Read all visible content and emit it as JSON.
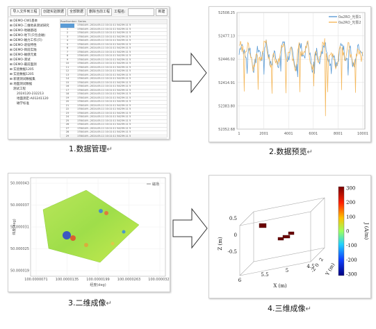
{
  "captions": {
    "p1": "1.数据管理",
    "p2": "2.数据预览",
    "p3": "3.二维成像",
    "p4": "4.三维成像",
    "mark": "↵"
  },
  "panel1": {
    "toolbar": [
      "导入文件到工程",
      "创建实验数据",
      "全部数据",
      "删除当前工程"
    ],
    "project_label": "工程名:",
    "new_button": "新建",
    "tree": [
      "DEMO-CW1基本",
      "DEMO-二维地表测试研究",
      "DEMO-地磁基础",
      "DEMO-地下(只包含磁)",
      "DEMO-磁力工作(只)",
      "DEMO-退役特性",
      "DEMO-目前实践",
      "DEMO-磁感元素",
      "DEMO-测试",
      "DEMO-最前面测",
      "实验数据1205",
      "实验数据1205",
      "新建测试数据集",
      "地面测试数据",
      "测试工程",
      "2024120-232213",
      "地面测定-A01241120",
      "磁学标准"
    ],
    "grid_headers": [
      "RowNumber",
      "Series"
    ],
    "grid_rows": [
      "1784149...2024-05-11 10:11:11 54239.11 5",
      "1784149...2024-05-11 10:11:11 54239.11 5",
      "1784149...2024-05-11 10:11:11 54239.11 5",
      "1784149...2024-05-11 10:11:11 54239.11 5",
      "1784149...2024-05-11 10:11:11 54239.11 5",
      "1784149...2024-05-11 10:11:11 54239.11 5",
      "1784149...2024-05-11 10:11:11 54239.11 5",
      "1784149...2024-05-11 10:11:11 54239.11 5",
      "1784149...2024-05-11 10:11:11 54239.11 5",
      "1784149...2024-05-11 10:11:11 54239.11 5",
      "1784149...2024-05-11 10:11:11 54239.11 5",
      "1784149...2024-05-11 10:11:11 54239.11 5",
      "1784149...2024-05-11 10:11:11 54239.11 5",
      "1784149...2024-05-11 10:11:11 54239.11 5",
      "1784149...2024-05-11 10:11:11 54239.11 5",
      "1784149...2024-05-11 10:11:11 54239.11 5",
      "1784149...2024-05-11 10:11:11 54239.11 5",
      "1784149...2024-05-11 10:11:11 54239.11 5",
      "1784149...2024-05-11 10:11:11 54239.11 5",
      "1784149...2024-05-11 10:11:11 54239.11 5",
      "1784149...2024-05-11 10:11:11 54239.11 5",
      "1784149...2024-05-11 10:11:11 54239.11 5",
      "1784149...2024-05-11 10:11:11 54239.11 5",
      "1784149...2024-05-11 10:11:11 54239.11 5",
      "1784149...2024-05-11 10:11:11 54239.11 5",
      "1784149...2024-05-11 10:11:11 54239.11 5",
      "1784149...2024-05-11 10:11:11 54239.11 5",
      "1784149...2024-05-11 10:11:11 54239.11 5",
      "1784149...2024-05-11 10:11:11 54239.11 5",
      "1784149...2024-05-11 10:11:11 54239.11 5"
    ]
  },
  "chart_data": [
    {
      "type": "line",
      "title": "",
      "series": [
        {
          "name": "0a2RO_光泵1",
          "color": "#5b9bd5"
        },
        {
          "name": "0a2RO_光泵2",
          "color": "#f4b75a"
        }
      ],
      "y_ticks": [
        "52508.25",
        "52477.13",
        "52446.02",
        "52414.91",
        "52383.80",
        "52352.68"
      ],
      "x_ticks": [
        "1",
        "2001",
        "4001",
        "6001",
        "8001",
        "10001"
      ],
      "ylim": [
        52352.68,
        52508.25
      ],
      "xlim": [
        1,
        10001
      ],
      "grid": true,
      "legend": "top-right"
    },
    {
      "type": "heatmap",
      "legend_label": "磁场",
      "xlabel": "经度(deg)",
      "ylabel": "纬度(deg)",
      "x_ticks": [
        "100.0000071",
        "100.0000135",
        "100.0000199",
        "100.0000263",
        "100.0000327"
      ],
      "y_ticks": [
        "50.000043",
        "50.000037",
        "50.000031",
        "50.000025",
        "50.000019"
      ]
    },
    {
      "type": "scatter",
      "xlabel": "X (m)",
      "ylabel": "Y (m)",
      "zlabel": "Z (m)",
      "x_ticks": [
        "6",
        "5.5",
        "5",
        "4.5"
      ],
      "y_ticks": [
        "-2",
        "0",
        "2"
      ],
      "z_ticks": [
        "0.5",
        "0",
        "-0.5"
      ],
      "colorbar_label": "J (A/m)",
      "colorbar_ticks": [
        "300",
        "200",
        "100",
        "0",
        "-100",
        "-200",
        "-300"
      ],
      "colorbar_range": [
        -300,
        300
      ]
    }
  ]
}
